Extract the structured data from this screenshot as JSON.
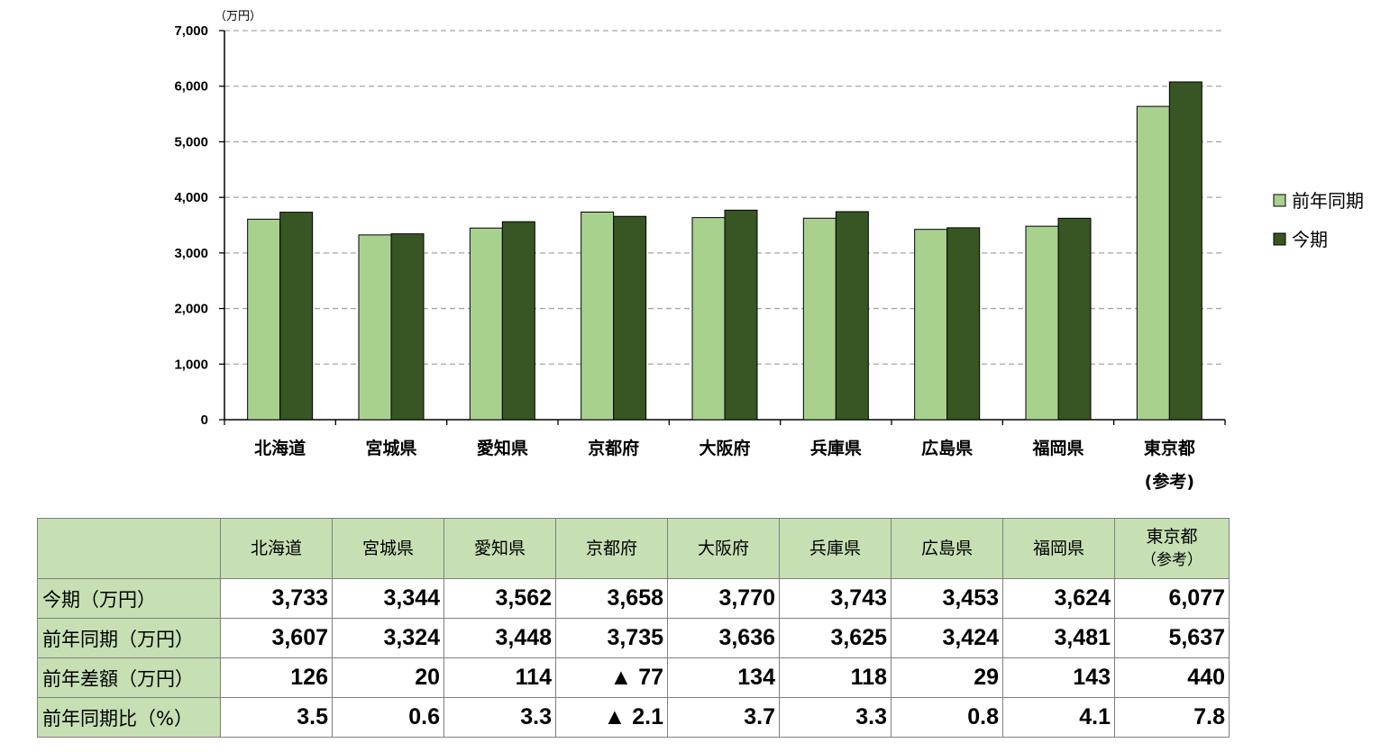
{
  "chart_data": {
    "type": "bar",
    "unit_label": "（万円）",
    "categories": [
      "北海道",
      "宮城県",
      "愛知県",
      "京都府",
      "大阪府",
      "兵庫県",
      "広島県",
      "福岡県",
      "東京都"
    ],
    "category_notes": [
      "",
      "",
      "",
      "",
      "",
      "",
      "",
      "",
      "(参考)"
    ],
    "series": [
      {
        "name": "前年同期",
        "color": "#a9d18e",
        "values": [
          3607,
          3324,
          3448,
          3735,
          3636,
          3625,
          3424,
          3481,
          5637
        ]
      },
      {
        "name": "今期",
        "color": "#375623",
        "values": [
          3733,
          3344,
          3562,
          3658,
          3770,
          3743,
          3453,
          3624,
          6077
        ]
      }
    ],
    "ylim": [
      0,
      7000
    ],
    "yticks": [
      0,
      1000,
      2000,
      3000,
      4000,
      5000,
      6000,
      7000
    ],
    "ytick_labels": [
      "0",
      "1,000",
      "2,000",
      "3,000",
      "4,000",
      "5,000",
      "6,000",
      "7,000"
    ],
    "grid": "dashed horizontal",
    "legend_position": "right"
  },
  "table": {
    "header_cells": [
      {
        "name": "北海道",
        "note": ""
      },
      {
        "name": "宮城県",
        "note": ""
      },
      {
        "name": "愛知県",
        "note": ""
      },
      {
        "name": "京都府",
        "note": ""
      },
      {
        "name": "大阪府",
        "note": ""
      },
      {
        "name": "兵庫県",
        "note": ""
      },
      {
        "name": "広島県",
        "note": ""
      },
      {
        "name": "福岡県",
        "note": ""
      },
      {
        "name": "東京都",
        "note": "（参考）"
      }
    ],
    "rows": [
      {
        "label": "今期（万円）",
        "values": [
          "3,733",
          "3,344",
          "3,562",
          "3,658",
          "3,770",
          "3,743",
          "3,453",
          "3,624",
          "6,077"
        ]
      },
      {
        "label": "前年同期（万円）",
        "values": [
          "3,607",
          "3,324",
          "3,448",
          "3,735",
          "3,636",
          "3,625",
          "3,424",
          "3,481",
          "5,637"
        ]
      },
      {
        "label": "前年差額（万円）",
        "values": [
          "126",
          "20",
          "114",
          "▲ 77",
          "134",
          "118",
          "29",
          "143",
          "440"
        ]
      },
      {
        "label": "前年同期比（%）",
        "values": [
          "3.5",
          "0.6",
          "3.3",
          "▲ 2.1",
          "3.7",
          "3.3",
          "0.8",
          "4.1",
          "7.8"
        ]
      }
    ]
  }
}
